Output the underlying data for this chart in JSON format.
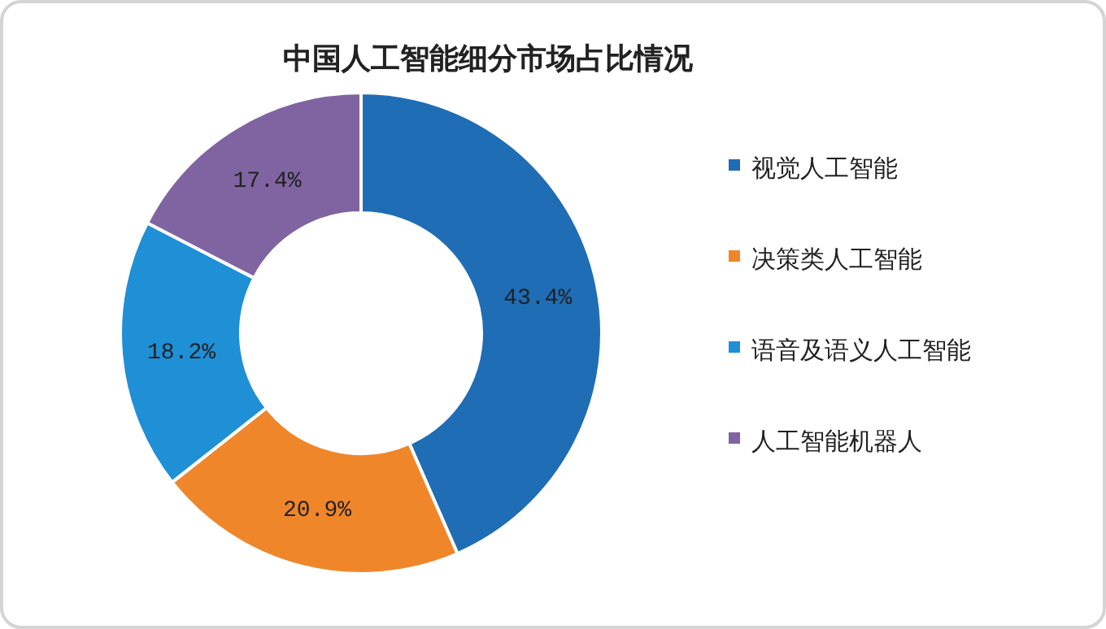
{
  "chart_data": {
    "type": "donut",
    "title": "中国人工智能细分市场占比情况",
    "categories": [
      "视觉人工智能",
      "决策类人工智能",
      "语音及语义人工智能",
      "人工智能机器人"
    ],
    "values": [
      43.4,
      20.9,
      18.2,
      17.4
    ],
    "colors": [
      "#1f6db5",
      "#f0862a",
      "#1f8fd6",
      "#8064a2"
    ],
    "value_labels": [
      "43.4%",
      "20.9%",
      "18.2%",
      "17.4%"
    ],
    "legend": "right"
  }
}
